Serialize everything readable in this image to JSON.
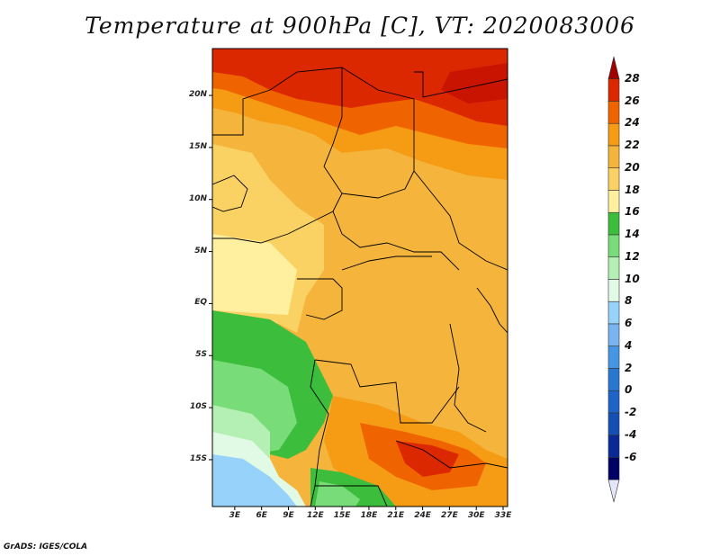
{
  "title": "Temperature at 900hPa [C], VT: 2020083006",
  "footer": "GrADS: IGES/COLA",
  "map": {
    "lat_range": [
      -19.5,
      24.5
    ],
    "lon_range": [
      0.5,
      33.5
    ],
    "lat_ticks": [
      {
        "value": 20,
        "label": "20N"
      },
      {
        "value": 15,
        "label": "15N"
      },
      {
        "value": 10,
        "label": "10N"
      },
      {
        "value": 5,
        "label": "5N"
      },
      {
        "value": 0,
        "label": "EQ"
      },
      {
        "value": -5,
        "label": "5S"
      },
      {
        "value": -10,
        "label": "10S"
      },
      {
        "value": -15,
        "label": "15S"
      }
    ],
    "lon_ticks": [
      {
        "value": 3,
        "label": "3E"
      },
      {
        "value": 6,
        "label": "6E"
      },
      {
        "value": 9,
        "label": "9E"
      },
      {
        "value": 12,
        "label": "12E"
      },
      {
        "value": 15,
        "label": "15E"
      },
      {
        "value": 18,
        "label": "18E"
      },
      {
        "value": 21,
        "label": "21E"
      },
      {
        "value": 24,
        "label": "24E"
      },
      {
        "value": 27,
        "label": "27E"
      },
      {
        "value": 30,
        "label": "30E"
      },
      {
        "value": 33,
        "label": "33E"
      }
    ]
  },
  "colorbar": {
    "labels": [
      "28",
      "26",
      "24",
      "22",
      "20",
      "18",
      "16",
      "14",
      "12",
      "10",
      "8",
      "6",
      "4",
      "2",
      "0",
      "-2",
      "-4",
      "-6"
    ],
    "colors": [
      {
        "range": "above 28",
        "color": "#a00000"
      },
      {
        "range": "26-28",
        "color": "#dc2800"
      },
      {
        "range": "24-26",
        "color": "#f06400"
      },
      {
        "range": "22-24",
        "color": "#f59c14"
      },
      {
        "range": "20-22",
        "color": "#f5b43c"
      },
      {
        "range": "18-20",
        "color": "#fad264"
      },
      {
        "range": "16-18",
        "color": "#fff0a0"
      },
      {
        "range": "14-16",
        "color": "#3cbe3c"
      },
      {
        "range": "12-14",
        "color": "#78dc78"
      },
      {
        "range": "10-12",
        "color": "#b4f0b4"
      },
      {
        "range": "8-10",
        "color": "#e1fae6"
      },
      {
        "range": "6-8",
        "color": "#96d2fa"
      },
      {
        "range": "4-6",
        "color": "#78b4f0"
      },
      {
        "range": "2-4",
        "color": "#4696e6"
      },
      {
        "range": "0-2",
        "color": "#2878d2"
      },
      {
        "range": "-2-0",
        "color": "#1e64c8"
      },
      {
        "range": "-4--2",
        "color": "#1450b4"
      },
      {
        "range": "-6--4",
        "color": "#0a2896"
      },
      {
        "range": "below -6",
        "color": "#000064"
      },
      {
        "range": "bottom arrow",
        "color": "#e6e6fa"
      }
    ]
  }
}
